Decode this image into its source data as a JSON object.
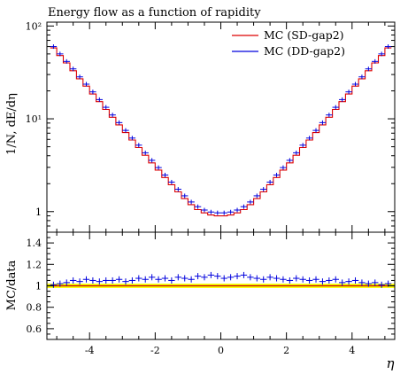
{
  "chart_data": [
    {
      "type": "line",
      "title": "Energy flow as a function of rapidity",
      "ylabel": "1/N, dE/dη",
      "xlabel": "η",
      "xlim": [
        -5.3,
        5.3
      ],
      "ylim": [
        0.6,
        110
      ],
      "y_scale": "log",
      "y_ticks": [
        "1",
        "10¹",
        "10²"
      ],
      "x_ticks": [
        "-4",
        "-2",
        "0",
        "2",
        "4"
      ],
      "legend_position": "top-right",
      "series": [
        {
          "name": "MC (SD-gap2)",
          "color": "#dd0000",
          "style": "line"
        },
        {
          "name": "MC (DD-gap2)",
          "color": "#0000dd",
          "style": "points-with-error"
        }
      ],
      "x": [
        -5.1,
        -4.9,
        -4.7,
        -4.5,
        -4.3,
        -4.1,
        -3.9,
        -3.7,
        -3.5,
        -3.3,
        -3.1,
        -2.9,
        -2.7,
        -2.5,
        -2.3,
        -2.1,
        -1.9,
        -1.7,
        -1.5,
        -1.3,
        -1.1,
        -0.9,
        -0.7,
        -0.5,
        -0.3,
        -0.1,
        0.1,
        0.3,
        0.5,
        0.7,
        0.9,
        1.1,
        1.3,
        1.5,
        1.7,
        1.9,
        2.1,
        2.3,
        2.5,
        2.7,
        2.9,
        3.1,
        3.3,
        3.5,
        3.7,
        3.9,
        4.1,
        4.3,
        4.5,
        4.7,
        4.9,
        5.1
      ],
      "sd_values": [
        58,
        48,
        40,
        33,
        27,
        22.5,
        18.5,
        15.3,
        12.6,
        10.4,
        8.6,
        7.1,
        5.9,
        4.9,
        4.05,
        3.35,
        2.8,
        2.33,
        1.95,
        1.63,
        1.38,
        1.19,
        1.05,
        0.97,
        0.92,
        0.9,
        0.9,
        0.92,
        0.97,
        1.05,
        1.19,
        1.38,
        1.63,
        1.95,
        2.33,
        2.8,
        3.35,
        4.05,
        4.9,
        5.9,
        7.1,
        8.6,
        10.4,
        12.6,
        15.3,
        18.5,
        22.5,
        27,
        33,
        40,
        48,
        58
      ],
      "dd_values": [
        60,
        50,
        41.5,
        34.5,
        28.3,
        23.6,
        19.5,
        16.1,
        13.3,
        11,
        9.1,
        7.5,
        6.2,
        5.2,
        4.3,
        3.57,
        2.98,
        2.48,
        2.08,
        1.74,
        1.48,
        1.27,
        1.13,
        1.04,
        0.99,
        0.97,
        0.97,
        0.99,
        1.04,
        1.13,
        1.27,
        1.48,
        1.74,
        2.08,
        2.48,
        2.98,
        3.57,
        4.3,
        5.2,
        6.2,
        7.5,
        9.1,
        11,
        13.3,
        16.1,
        19.5,
        23.6,
        28.3,
        34.5,
        41.5,
        50,
        60
      ]
    },
    {
      "type": "scatter",
      "ylabel": "MC/data",
      "xlabel": "η",
      "xlim": [
        -5.3,
        5.3
      ],
      "ylim": [
        0.5,
        1.5
      ],
      "y_ticks": [
        "0.6",
        "0.8",
        "1",
        "1.2",
        "1.4"
      ],
      "x_ticks": [
        "-4",
        "-2",
        "0",
        "2",
        "4"
      ],
      "reference_line": 1,
      "band": [
        0.98,
        1.02
      ],
      "band_color": "#ffff00",
      "x": [
        -5.1,
        -4.9,
        -4.7,
        -4.5,
        -4.3,
        -4.1,
        -3.9,
        -3.7,
        -3.5,
        -3.3,
        -3.1,
        -2.9,
        -2.7,
        -2.5,
        -2.3,
        -2.1,
        -1.9,
        -1.7,
        -1.5,
        -1.3,
        -1.1,
        -0.9,
        -0.7,
        -0.5,
        -0.3,
        -0.1,
        0.1,
        0.3,
        0.5,
        0.7,
        0.9,
        1.1,
        1.3,
        1.5,
        1.7,
        1.9,
        2.1,
        2.3,
        2.5,
        2.7,
        2.9,
        3.1,
        3.3,
        3.5,
        3.7,
        3.9,
        4.1,
        4.3,
        4.5,
        4.7,
        4.9,
        5.1
      ],
      "dd_ratio": [
        1.01,
        1.02,
        1.03,
        1.05,
        1.04,
        1.06,
        1.05,
        1.04,
        1.05,
        1.05,
        1.06,
        1.04,
        1.05,
        1.07,
        1.06,
        1.08,
        1.06,
        1.07,
        1.05,
        1.08,
        1.07,
        1.06,
        1.09,
        1.08,
        1.1,
        1.09,
        1.07,
        1.08,
        1.09,
        1.1,
        1.08,
        1.07,
        1.06,
        1.08,
        1.07,
        1.06,
        1.05,
        1.07,
        1.06,
        1.05,
        1.06,
        1.04,
        1.05,
        1.06,
        1.03,
        1.04,
        1.05,
        1.03,
        1.02,
        1.03,
        1.01,
        1.02
      ],
      "sd_ratio": 1.0
    }
  ]
}
